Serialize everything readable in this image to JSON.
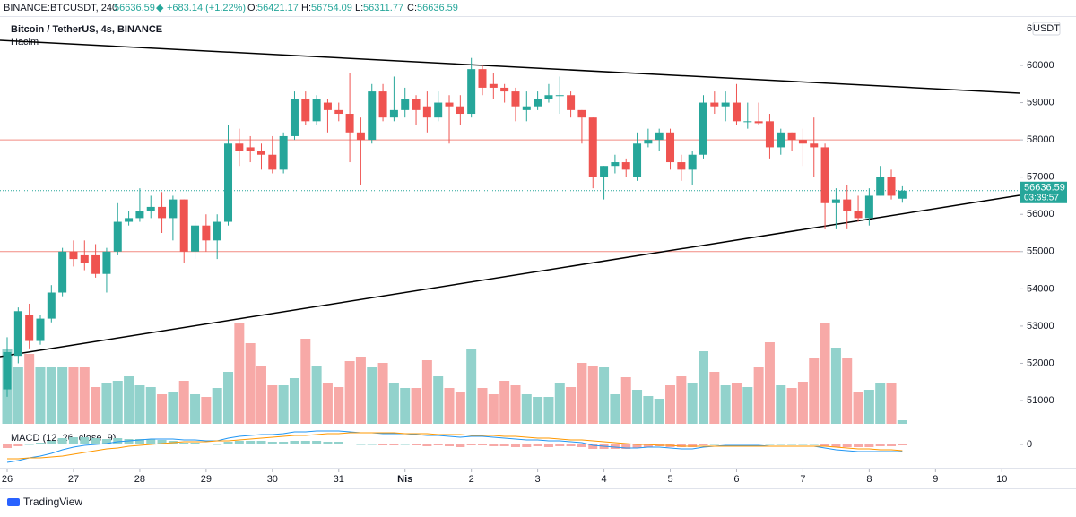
{
  "header": {
    "symbol": "BINANCE:BTCUSDT, 240",
    "price": "56636.59",
    "change": "+683.14 (+1.22%)",
    "o_label": "O:",
    "o": "56421.17",
    "h_label": "H:",
    "h": "56754.09",
    "l_label": "L:",
    "l": "56311.77",
    "c_label": "C:",
    "c": "56636.59"
  },
  "chart_data": {
    "type": "candlestick",
    "title": "Bitcoin / TetherUS, 4s, BINANCE",
    "volume_label": "Hacim",
    "macd_label": "MACD (12, 26, close, 9)",
    "axis_top_label": "6",
    "currency": "USDT",
    "brand": "TradingView",
    "up_color": "#26a69a",
    "down_color": "#ef5350",
    "volume_up_color": "#92d2cc",
    "volume_down_color": "#f7a9a7",
    "macd_color": "#2196f3",
    "signal_color": "#ff9800",
    "last_price": 56636.59,
    "last_price_label": "56636.59",
    "countdown": "03:39:57",
    "ylim": [
      50327,
      61275
    ],
    "yticks": [
      51000,
      52000,
      53000,
      54000,
      55000,
      56000,
      57000,
      58000,
      59000,
      60000
    ],
    "xlim": [
      -0.65,
      91.6
    ],
    "xticks": [
      {
        "value": 0,
        "label": "26"
      },
      {
        "value": 6,
        "label": "27"
      },
      {
        "value": 12,
        "label": "28"
      },
      {
        "value": 18,
        "label": "29"
      },
      {
        "value": 24,
        "label": "30"
      },
      {
        "value": 30,
        "label": "31"
      },
      {
        "value": 36,
        "label": "Nis"
      },
      {
        "value": 42,
        "label": "2"
      },
      {
        "value": 48,
        "label": "3"
      },
      {
        "value": 54,
        "label": "4"
      },
      {
        "value": 60,
        "label": "5"
      },
      {
        "value": 66,
        "label": "6"
      },
      {
        "value": 72,
        "label": "7"
      },
      {
        "value": 78,
        "label": "8"
      },
      {
        "value": 84,
        "label": "9"
      },
      {
        "value": 90,
        "label": "10"
      }
    ],
    "macd_yticks": [
      0
    ],
    "horizontal_lines": [
      58000,
      55000,
      53300
    ],
    "trend_lines": [
      {
        "x": [
          -0.65,
          91.6
        ],
        "y": [
          60674,
          59254
        ]
      },
      {
        "x": [
          -0.65,
          91.6
        ],
        "y": [
          52180,
          56512
        ]
      }
    ],
    "candles": [
      {
        "o": 51300,
        "h": 52700,
        "l": 51100,
        "c": 52300
      },
      {
        "o": 52200,
        "h": 53500,
        "l": 52000,
        "c": 53400
      },
      {
        "o": 53300,
        "h": 53600,
        "l": 52400,
        "c": 52600
      },
      {
        "o": 52600,
        "h": 53300,
        "l": 52500,
        "c": 53200
      },
      {
        "o": 53200,
        "h": 54100,
        "l": 53100,
        "c": 53900
      },
      {
        "o": 53900,
        "h": 55100,
        "l": 53800,
        "c": 55000
      },
      {
        "o": 55000,
        "h": 55300,
        "l": 54600,
        "c": 54800
      },
      {
        "o": 54900,
        "h": 55300,
        "l": 54500,
        "c": 54700
      },
      {
        "o": 54900,
        "h": 55200,
        "l": 54300,
        "c": 54400
      },
      {
        "o": 54400,
        "h": 55100,
        "l": 53900,
        "c": 55000
      },
      {
        "o": 55000,
        "h": 56300,
        "l": 54900,
        "c": 55800
      },
      {
        "o": 55800,
        "h": 56100,
        "l": 55700,
        "c": 55900
      },
      {
        "o": 55900,
        "h": 56700,
        "l": 55800,
        "c": 56100
      },
      {
        "o": 56100,
        "h": 56500,
        "l": 55900,
        "c": 56200
      },
      {
        "o": 56200,
        "h": 56600,
        "l": 55500,
        "c": 55900
      },
      {
        "o": 55900,
        "h": 56500,
        "l": 55300,
        "c": 56400
      },
      {
        "o": 56400,
        "h": 56400,
        "l": 54700,
        "c": 55000
      },
      {
        "o": 55000,
        "h": 55800,
        "l": 54800,
        "c": 55700
      },
      {
        "o": 55700,
        "h": 56000,
        "l": 55000,
        "c": 55300
      },
      {
        "o": 55300,
        "h": 56000,
        "l": 54800,
        "c": 55800
      },
      {
        "o": 55800,
        "h": 58400,
        "l": 55700,
        "c": 57900
      },
      {
        "o": 57900,
        "h": 58300,
        "l": 57300,
        "c": 57700
      },
      {
        "o": 57800,
        "h": 58100,
        "l": 57400,
        "c": 57700
      },
      {
        "o": 57700,
        "h": 57900,
        "l": 57200,
        "c": 57600
      },
      {
        "o": 57600,
        "h": 58100,
        "l": 57100,
        "c": 57200
      },
      {
        "o": 57200,
        "h": 58200,
        "l": 57100,
        "c": 58100
      },
      {
        "o": 58100,
        "h": 59300,
        "l": 58000,
        "c": 59100
      },
      {
        "o": 59100,
        "h": 59300,
        "l": 58400,
        "c": 58500
      },
      {
        "o": 58500,
        "h": 59200,
        "l": 58400,
        "c": 59100
      },
      {
        "o": 59000,
        "h": 59100,
        "l": 58200,
        "c": 58800
      },
      {
        "o": 58800,
        "h": 59000,
        "l": 58500,
        "c": 58700
      },
      {
        "o": 58700,
        "h": 59800,
        "l": 57400,
        "c": 58200
      },
      {
        "o": 58200,
        "h": 58600,
        "l": 56800,
        "c": 58000
      },
      {
        "o": 58000,
        "h": 59500,
        "l": 57900,
        "c": 59300
      },
      {
        "o": 59300,
        "h": 59500,
        "l": 58500,
        "c": 58600
      },
      {
        "o": 58600,
        "h": 59700,
        "l": 58500,
        "c": 58800
      },
      {
        "o": 58800,
        "h": 59400,
        "l": 58600,
        "c": 59100
      },
      {
        "o": 59100,
        "h": 59200,
        "l": 58400,
        "c": 58800
      },
      {
        "o": 58900,
        "h": 59300,
        "l": 58200,
        "c": 58600
      },
      {
        "o": 58600,
        "h": 59300,
        "l": 58500,
        "c": 59000
      },
      {
        "o": 59000,
        "h": 59200,
        "l": 57900,
        "c": 58900
      },
      {
        "o": 58900,
        "h": 59200,
        "l": 58400,
        "c": 58700
      },
      {
        "o": 58700,
        "h": 60200,
        "l": 58600,
        "c": 59900
      },
      {
        "o": 59900,
        "h": 60000,
        "l": 59200,
        "c": 59400
      },
      {
        "o": 59500,
        "h": 59800,
        "l": 59100,
        "c": 59400
      },
      {
        "o": 59400,
        "h": 59500,
        "l": 59000,
        "c": 59300
      },
      {
        "o": 59300,
        "h": 59400,
        "l": 58500,
        "c": 58900
      },
      {
        "o": 58800,
        "h": 59300,
        "l": 58500,
        "c": 58900
      },
      {
        "o": 58900,
        "h": 59300,
        "l": 58800,
        "c": 59100
      },
      {
        "o": 59100,
        "h": 59500,
        "l": 59000,
        "c": 59200
      },
      {
        "o": 59200,
        "h": 59700,
        "l": 58700,
        "c": 59200
      },
      {
        "o": 59200,
        "h": 59300,
        "l": 58600,
        "c": 58800
      },
      {
        "o": 58800,
        "h": 58800,
        "l": 57900,
        "c": 58600
      },
      {
        "o": 58600,
        "h": 58600,
        "l": 56700,
        "c": 57000
      },
      {
        "o": 57000,
        "h": 57300,
        "l": 56400,
        "c": 57300
      },
      {
        "o": 57300,
        "h": 57600,
        "l": 57100,
        "c": 57400
      },
      {
        "o": 57400,
        "h": 57500,
        "l": 57000,
        "c": 57200
      },
      {
        "o": 57000,
        "h": 58200,
        "l": 56900,
        "c": 57900
      },
      {
        "o": 57900,
        "h": 58300,
        "l": 57800,
        "c": 58000
      },
      {
        "o": 58000,
        "h": 58300,
        "l": 57700,
        "c": 58200
      },
      {
        "o": 58200,
        "h": 58300,
        "l": 57200,
        "c": 57400
      },
      {
        "o": 57400,
        "h": 57600,
        "l": 56900,
        "c": 57200
      },
      {
        "o": 57200,
        "h": 57700,
        "l": 56800,
        "c": 57600
      },
      {
        "o": 57600,
        "h": 59200,
        "l": 57500,
        "c": 59000
      },
      {
        "o": 59000,
        "h": 59300,
        "l": 58700,
        "c": 58900
      },
      {
        "o": 58900,
        "h": 59300,
        "l": 58500,
        "c": 59000
      },
      {
        "o": 59000,
        "h": 59500,
        "l": 58400,
        "c": 58500
      },
      {
        "o": 58500,
        "h": 59000,
        "l": 58300,
        "c": 58500
      },
      {
        "o": 58500,
        "h": 59000,
        "l": 58400,
        "c": 58450
      },
      {
        "o": 58500,
        "h": 58700,
        "l": 57500,
        "c": 57800
      },
      {
        "o": 57800,
        "h": 58300,
        "l": 57600,
        "c": 58200
      },
      {
        "o": 58200,
        "h": 58200,
        "l": 57700,
        "c": 58000
      },
      {
        "o": 58000,
        "h": 58300,
        "l": 57300,
        "c": 57900
      },
      {
        "o": 57900,
        "h": 58600,
        "l": 57000,
        "c": 57800
      },
      {
        "o": 57800,
        "h": 57900,
        "l": 55600,
        "c": 56300
      },
      {
        "o": 56300,
        "h": 56700,
        "l": 55600,
        "c": 56400
      },
      {
        "o": 56400,
        "h": 56800,
        "l": 55600,
        "c": 56100
      },
      {
        "o": 56100,
        "h": 56500,
        "l": 55800,
        "c": 55900
      },
      {
        "o": 55900,
        "h": 56700,
        "l": 55700,
        "c": 56500
      },
      {
        "o": 56500,
        "h": 57300,
        "l": 56500,
        "c": 57000
      },
      {
        "o": 57000,
        "h": 57200,
        "l": 56400,
        "c": 56500
      },
      {
        "o": 56421.17,
        "h": 56754.09,
        "l": 56311.77,
        "c": 56636.59
      }
    ],
    "volume": [
      83,
      63,
      78,
      63,
      63,
      63,
      63,
      63,
      41,
      45,
      48,
      53,
      43,
      41,
      33,
      36,
      48,
      33,
      30,
      40,
      58,
      113,
      90,
      65,
      43,
      43,
      51,
      95,
      65,
      45,
      41,
      70,
      75,
      63,
      68,
      46,
      40,
      40,
      71,
      53,
      40,
      35,
      83,
      40,
      33,
      48,
      43,
      33,
      30,
      30,
      46,
      41,
      68,
      65,
      63,
      33,
      52,
      38,
      31,
      28,
      43,
      53,
      45,
      81,
      58,
      43,
      46,
      41,
      63,
      91,
      43,
      40,
      47,
      73,
      112,
      85,
      73,
      36,
      38,
      45,
      45,
      4
    ],
    "macd": [
      -20,
      -18,
      -15,
      -13,
      -10,
      -6,
      -3,
      -1,
      0,
      1,
      3,
      4,
      5,
      6,
      6,
      6,
      5,
      5,
      4,
      4,
      7,
      9,
      10,
      11,
      11,
      12,
      14,
      14,
      15,
      15,
      15,
      14,
      13,
      13,
      12,
      12,
      12,
      11,
      10,
      10,
      9,
      8,
      9,
      9,
      8,
      7,
      6,
      5,
      5,
      4,
      4,
      3,
      2,
      -1,
      -2,
      -3,
      -4,
      -4,
      -3,
      -3,
      -4,
      -5,
      -5,
      -3,
      -2,
      -1,
      -1,
      -1,
      -1,
      -2,
      -2,
      -2,
      -2,
      -2,
      -4,
      -6,
      -7,
      -8,
      -8,
      -8,
      -8,
      -8
    ],
    "signal": [
      -16,
      -16,
      -15,
      -15,
      -14,
      -13,
      -11,
      -9,
      -7,
      -5,
      -4,
      -2,
      -1,
      0,
      1,
      2,
      3,
      3,
      3,
      4,
      4,
      5,
      6,
      7,
      8,
      9,
      10,
      10,
      11,
      12,
      12,
      13,
      13,
      13,
      13,
      13,
      12,
      12,
      12,
      11,
      11,
      11,
      10,
      10,
      10,
      9,
      9,
      8,
      7,
      7,
      6,
      5,
      5,
      4,
      3,
      2,
      1,
      0,
      0,
      -1,
      -1,
      -2,
      -2,
      -2,
      -2,
      -2,
      -2,
      -2,
      -2,
      -2,
      -2,
      -2,
      -2,
      -2,
      -2,
      -3,
      -4,
      -5,
      -5,
      -6,
      -6,
      -7
    ],
    "histogram": [
      -4,
      -2,
      0,
      2,
      4,
      7,
      8,
      8,
      7,
      6,
      7,
      6,
      6,
      6,
      5,
      4,
      2,
      2,
      1,
      0,
      3,
      4,
      4,
      4,
      3,
      3,
      4,
      4,
      4,
      3,
      3,
      1,
      0,
      0,
      -1,
      -1,
      0,
      -1,
      -2,
      -1,
      -2,
      -3,
      -1,
      -1,
      -2,
      -2,
      -3,
      -3,
      -2,
      -3,
      -2,
      -2,
      -3,
      -5,
      -5,
      -5,
      -5,
      -4,
      -3,
      -2,
      -3,
      -3,
      -3,
      -1,
      0,
      1,
      1,
      1,
      1,
      0,
      0,
      0,
      0,
      0,
      -2,
      -3,
      -3,
      -3,
      -3,
      -2,
      -2,
      -1
    ]
  }
}
